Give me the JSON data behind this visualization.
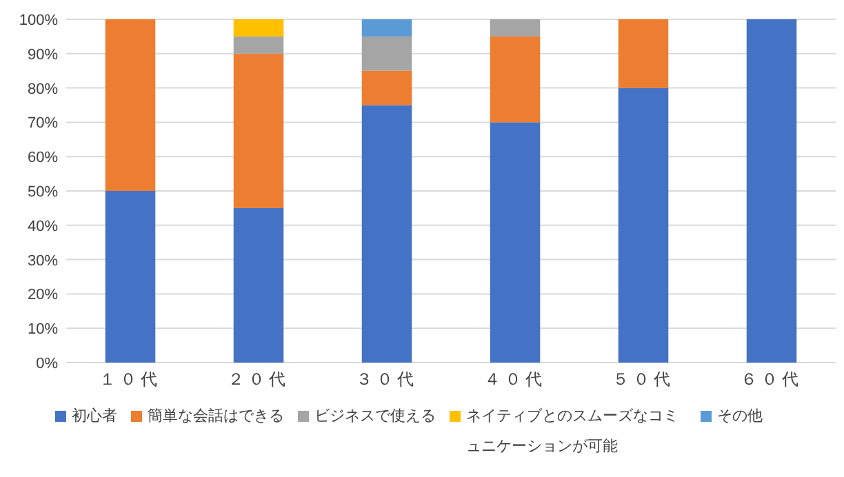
{
  "chart_data": {
    "type": "bar",
    "stacked": true,
    "categories": [
      "１０代",
      "２０代",
      "３０代",
      "４０代",
      "５０代",
      "６０代"
    ],
    "series": [
      {
        "name": "初心者",
        "color": "#4472c4",
        "values": [
          50,
          45,
          75,
          70,
          80,
          100
        ]
      },
      {
        "name": "簡単な会話はできる",
        "color": "#ed7d31",
        "values": [
          50,
          45,
          10,
          25,
          20,
          0
        ]
      },
      {
        "name": "ビジネスで使える",
        "color": "#a5a5a5",
        "values": [
          0,
          5,
          10,
          5,
          0,
          0
        ]
      },
      {
        "name": "ネイティブとのスムーズなコミュニケーションが可能",
        "color": "#ffc000",
        "values": [
          0,
          5,
          0,
          0,
          0,
          0
        ]
      },
      {
        "name": "その他",
        "color": "#5b9bd5",
        "values": [
          0,
          0,
          5,
          0,
          0,
          0
        ]
      }
    ],
    "ylim": [
      0,
      100
    ],
    "yticks": [
      {
        "value": 0,
        "label": "0%"
      },
      {
        "value": 10,
        "label": "10%"
      },
      {
        "value": 20,
        "label": "20%"
      },
      {
        "value": 30,
        "label": "30%"
      },
      {
        "value": 40,
        "label": "40%"
      },
      {
        "value": 50,
        "label": "50%"
      },
      {
        "value": 60,
        "label": "60%"
      },
      {
        "value": 70,
        "label": "70%"
      },
      {
        "value": 80,
        "label": "80%"
      },
      {
        "value": 90,
        "label": "90%"
      },
      {
        "value": 100,
        "label": "100%"
      }
    ],
    "grid": "y",
    "legend": "bottom"
  }
}
